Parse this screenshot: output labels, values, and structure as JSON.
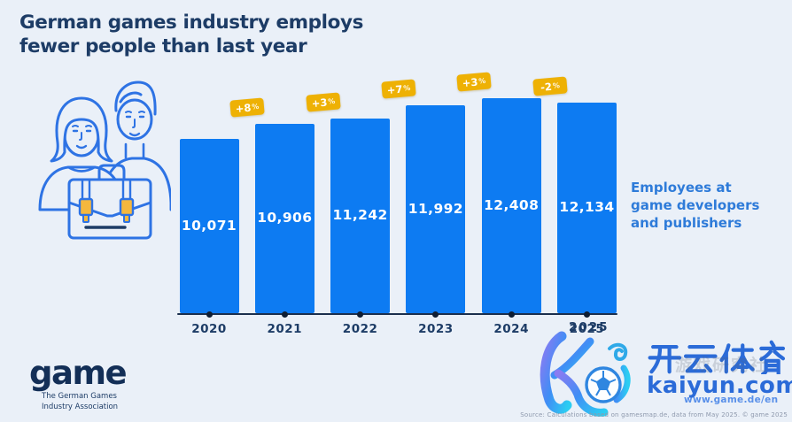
{
  "header": {
    "title": "German games industry employs\nfewer people than last year"
  },
  "chart_data": {
    "type": "bar",
    "title": "German games industry employs fewer people than last year",
    "categories": [
      "2020",
      "2021",
      "2022",
      "2023",
      "2024",
      "2025"
    ],
    "values": [
      10071,
      10906,
      11242,
      11992,
      12408,
      12134
    ],
    "value_labels": [
      "10,071",
      "10,906",
      "11,242",
      "11,992",
      "12,408",
      "12,134"
    ],
    "yoy_change": [
      null,
      "+8%",
      "+3%",
      "+7%",
      "+3%",
      "-2%"
    ],
    "series_label": "Employees at game developers and publishers",
    "xlabel": "",
    "ylabel": "",
    "ylim": [
      0,
      12700
    ],
    "grid": false,
    "legend": "none"
  },
  "annotation": {
    "side_label": "Employees at\ngame developers\nand publishers"
  },
  "footer": {
    "brand_name": "game",
    "brand_tagline": "The German Games\nIndustry Association",
    "source": "Source: Calculations based on gamesmap.de, data from May 2025. © game 2025",
    "website": "www.game.de/en"
  },
  "watermark": {
    "year": "2025",
    "brand_cn": "开云体育",
    "domain": "kaiyun.com",
    "overlay_text": "游戏研究社"
  },
  "colors": {
    "background": "#eaf0f8",
    "bar": "#0d7bf2",
    "badge": "#eeb104",
    "title": "#1d3c66",
    "side_label": "#2e7bd9",
    "axis": "#1b2f4d",
    "watermark_blue": "#2b6bd8"
  }
}
